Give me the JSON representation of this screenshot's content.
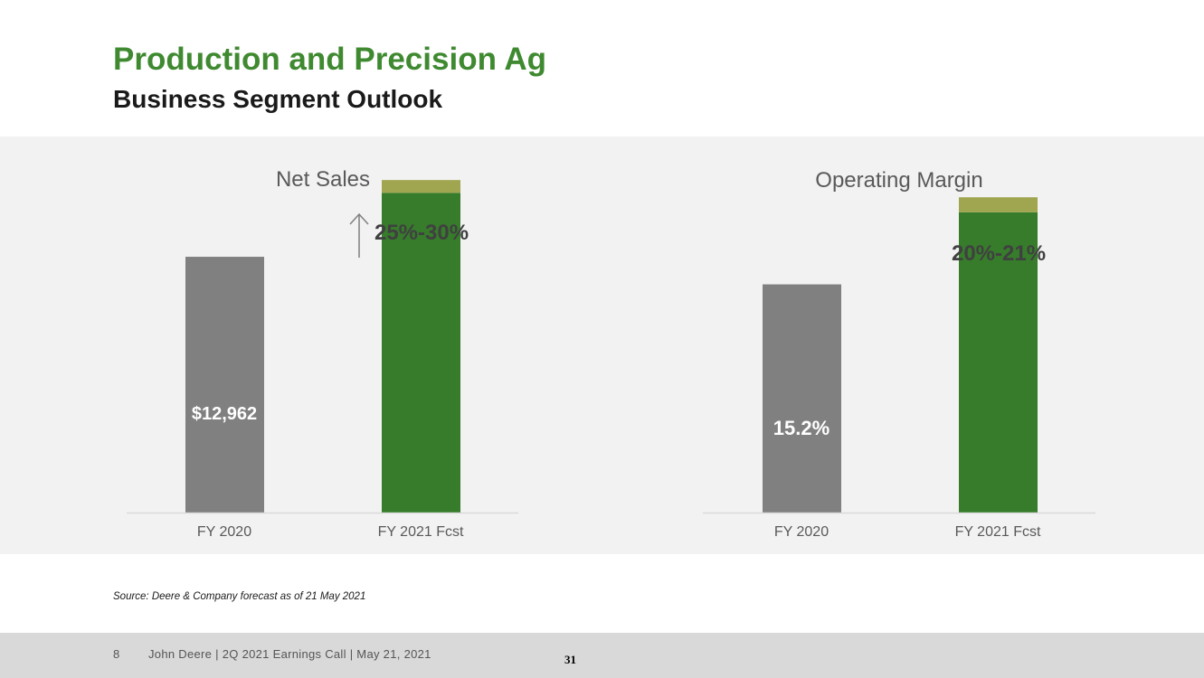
{
  "header": {
    "title": "Production and Precision Ag",
    "subtitle": "Business Segment Outlook"
  },
  "chart_data": [
    {
      "type": "bar",
      "title": "Net Sales",
      "categories": [
        "FY 2020",
        "FY 2021 Fcst"
      ],
      "series": [
        {
          "values": [
            12962,
            16203
          ]
        },
        {
          "values": [
            0,
            648
          ]
        }
      ],
      "data_labels": [
        "$12,962",
        "25%-30%"
      ],
      "ylim": [
        0,
        17500
      ],
      "annotation": "up-arrow",
      "colors": [
        "#808080",
        "#367c2b",
        "#a0a64f"
      ]
    },
    {
      "type": "bar",
      "title": "Operating Margin",
      "categories": [
        "FY 2020",
        "FY 2021 Fcst"
      ],
      "series": [
        {
          "values": [
            15.2,
            20
          ]
        },
        {
          "values": [
            0,
            1
          ]
        }
      ],
      "data_labels": [
        "15.2%",
        "20%-21%"
      ],
      "ylim": [
        0,
        23
      ],
      "colors": [
        "#808080",
        "#367c2b",
        "#a0a64f"
      ]
    }
  ],
  "source_note": "Source: Deere & Company forecast as of 21 May 2021",
  "footer": {
    "page_number": "8",
    "text": "John Deere | 2Q 2021 Earnings Call | May 21, 2021",
    "slide_number": "31"
  }
}
